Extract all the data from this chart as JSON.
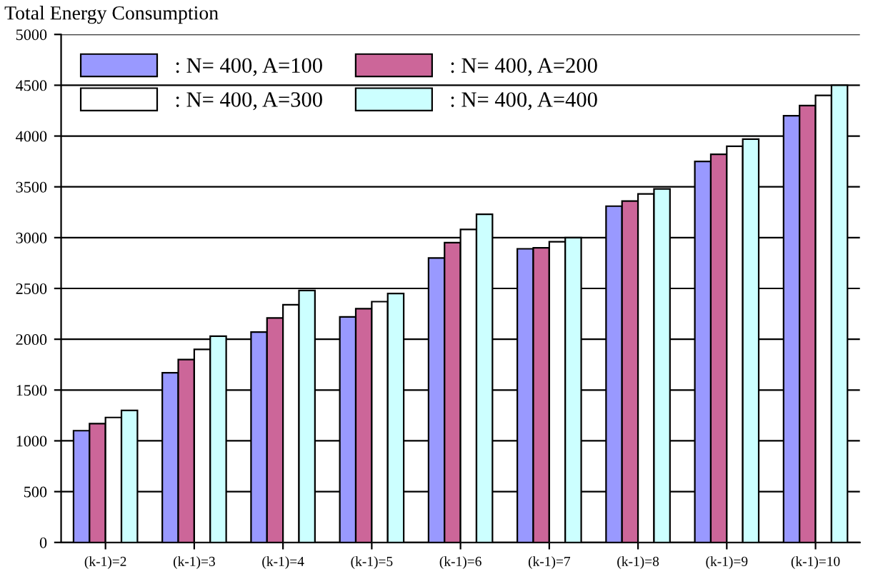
{
  "chart_data": {
    "type": "bar",
    "title": "Total Energy Consumption",
    "categories": [
      "(k-1)=2",
      "(k-1)=3",
      "(k-1)=4",
      "(k-1)=5",
      "(k-1)=6",
      "(k-1)=7",
      "(k-1)=8",
      "(k-1)=9",
      "(k-1)=10"
    ],
    "series": [
      {
        "name": ": N= 400, A=100",
        "color": "#9999ff",
        "values": [
          1100,
          1670,
          2070,
          2220,
          2800,
          2890,
          3310,
          3750,
          4200
        ]
      },
      {
        "name": ": N= 400, A=200",
        "color": "#cc6699",
        "values": [
          1170,
          1800,
          2210,
          2300,
          2950,
          2900,
          3360,
          3820,
          4300
        ]
      },
      {
        "name": ": N= 400, A=300",
        "color": "#ffffff",
        "values": [
          1230,
          1900,
          2340,
          2370,
          3080,
          2960,
          3430,
          3900,
          4400
        ]
      },
      {
        "name": ": N= 400, A=400",
        "color": "#ccffff",
        "values": [
          1300,
          2030,
          2480,
          2450,
          3230,
          3000,
          3480,
          3970,
          4500
        ]
      }
    ],
    "ylim": [
      0,
      5000
    ],
    "yticks": [
      0,
      500,
      1000,
      1500,
      2000,
      2500,
      3000,
      3500,
      4000,
      4500,
      5000
    ],
    "grid": "y",
    "legend": "top left"
  }
}
